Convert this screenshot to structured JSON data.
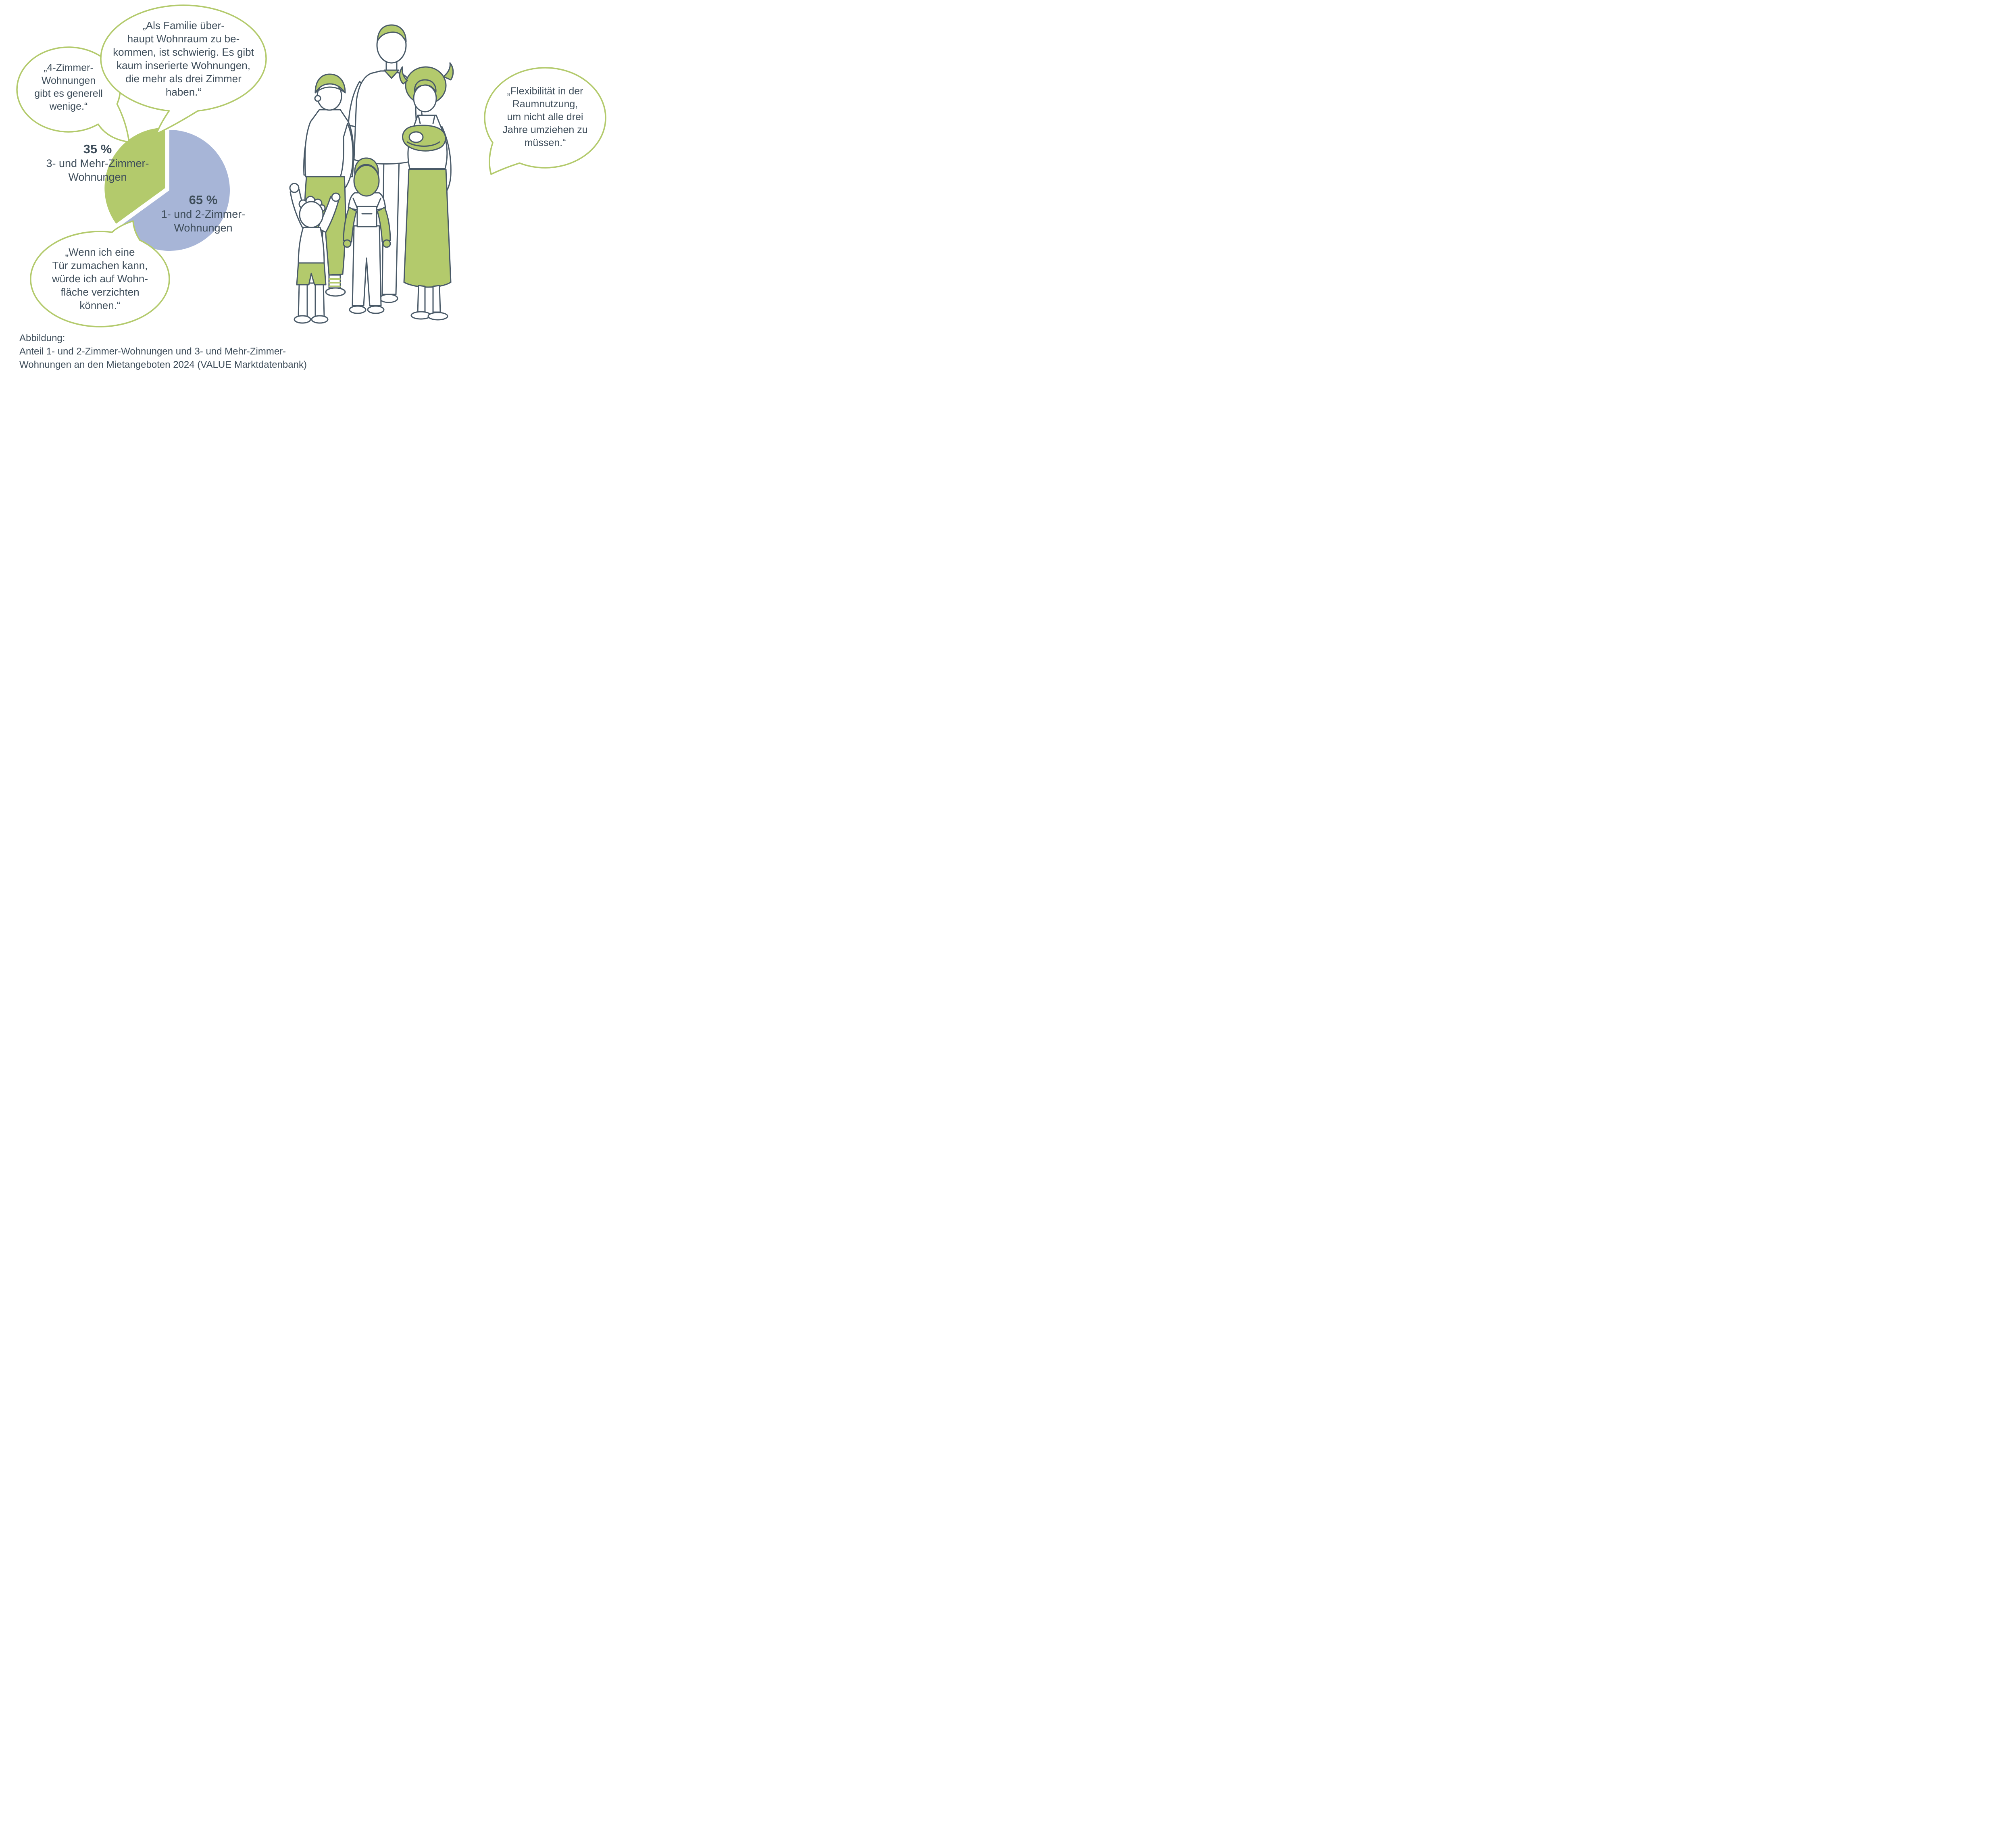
{
  "colors": {
    "green": "#b3ca6c",
    "blue": "#a7b5d7",
    "ink": "#3e4d5a",
    "outline": "#4a5a68"
  },
  "chart_data": {
    "type": "pie",
    "title": "Anteil 1- und 2-Zimmer-Wohnungen und 3- und Mehr-Zimmer-Wohnungen an den Mietangeboten 2024",
    "source": "VALUE Marktdatenbank",
    "legend_position": "labels-beside-slices",
    "slices": [
      {
        "label": "1- und 2-Zimmer-\nWohnungen",
        "pct": "65 %",
        "value": 65,
        "color_key": "blue",
        "exploded": false
      },
      {
        "label": "3- und Mehr-Zimmer-\nWohnungen",
        "pct": "35 %",
        "value": 35,
        "color_key": "green",
        "exploded": true
      }
    ]
  },
  "bubbles": {
    "top_left": "„4-Zimmer-\nWohnungen\ngibt es generell\nwenige.“",
    "top_center": "„Als Familie über-\nhaupt Wohnraum zu be-\nkommen, ist schwierig. Es gibt\nkaum inserierte Wohnungen,\ndie mehr als drei Zimmer\nhaben.“",
    "bottom_left": "„Wenn ich eine\nTür zumachen kann,\nwürde ich auf Wohn-\nfläche verzichten\nkönnen.“",
    "right": "„Flexibilität in der\nRaumnutzung,\num nicht alle drei\nJahre umziehen zu\nmüssen.“"
  },
  "caption": "Abbildung:\nAnteil 1- und 2-Zimmer-Wohnungen und 3- und Mehr-Zimmer-\nWohnungen an den Mietangeboten 2024 (VALUE Marktdatenbank)"
}
